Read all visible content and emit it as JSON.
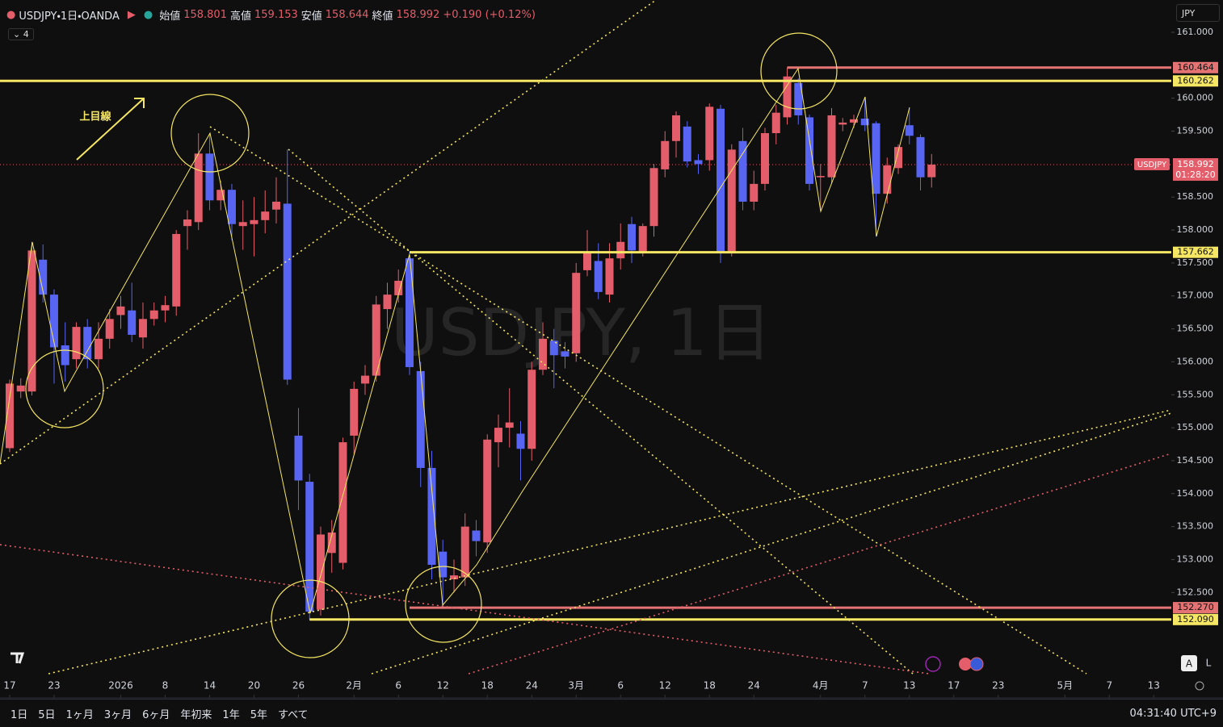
{
  "header": {
    "symbol": "USDJPY・1日・OANDA",
    "open_label": "始値",
    "open": "158.801",
    "high_label": "高値",
    "high": "159.153",
    "low_label": "安値",
    "low": "158.644",
    "close_label": "終値",
    "close": "158.992",
    "change": "+0.190 (+0.12%)",
    "indicators": "4",
    "currency": "JPY"
  },
  "chart_data": {
    "type": "candlestick",
    "watermark": "USDJPY, 1日",
    "annotation": "上目線",
    "colors": {
      "up": "#e35d6a",
      "down": "#5865f2"
    },
    "open": [
      154.69,
      155.55,
      155.55,
      157.55,
      157.02,
      156.25,
      156.04,
      156.53,
      156.04,
      156.35,
      156.71,
      156.78,
      156.37,
      156.65,
      156.78,
      156.84,
      158.06,
      158.12,
      159.16,
      158.45,
      158.61,
      158.06,
      158.09,
      158.15,
      158.31,
      158.4,
      154.88,
      154.18,
      152.24,
      153.1,
      152.95,
      154.88,
      155.67,
      155.79,
      156.8,
      157.01,
      157.57,
      155.86,
      154.39,
      153.12,
      152.7,
      152.73,
      153.44,
      153.26,
      154.78,
      155.0,
      154.91,
      154.68,
      155.88,
      156.32,
      156.16,
      156.13,
      157.39,
      157.53,
      157.02,
      157.57,
      158.09,
      157.67,
      158.06,
      158.92,
      159.35,
      159.57,
      159.06,
      159.06,
      159.84,
      157.67,
      159.35,
      158.43,
      158.7,
      159.47,
      159.71,
      160.23,
      159.71,
      158.8,
      158.8,
      159.6,
      159.63,
      159.69,
      159.62,
      158.55,
      158.94,
      159.59,
      159.41,
      158.801
    ],
    "high": [
      155.73,
      155.75,
      157.82,
      157.78,
      157.1,
      156.6,
      156.6,
      156.65,
      156.6,
      156.8,
      157.0,
      157.2,
      156.9,
      156.9,
      157.0,
      158.0,
      158.3,
      159.47,
      159.47,
      158.75,
      158.7,
      158.45,
      158.5,
      158.6,
      158.8,
      159.22,
      155.3,
      154.3,
      153.5,
      153.6,
      154.85,
      155.7,
      155.95,
      157.0,
      157.2,
      157.4,
      157.66,
      156.0,
      154.65,
      153.3,
      153.0,
      153.7,
      153.6,
      154.9,
      155.2,
      155.6,
      155.1,
      156.0,
      156.6,
      156.5,
      156.3,
      157.5,
      158.0,
      157.8,
      157.8,
      158.1,
      158.2,
      158.1,
      159.0,
      159.5,
      159.8,
      159.65,
      159.15,
      159.92,
      159.9,
      159.3,
      159.55,
      158.9,
      159.55,
      159.9,
      160.464,
      160.3,
      159.75,
      159.0,
      159.85,
      159.7,
      159.75,
      160.0,
      159.65,
      159.1,
      159.3,
      159.85,
      159.45,
      159.153
    ],
    "low": [
      154.63,
      155.45,
      155.49,
      156.9,
      155.67,
      155.7,
      155.9,
      155.9,
      155.9,
      156.2,
      156.5,
      156.3,
      156.2,
      156.55,
      156.6,
      156.7,
      157.7,
      158.0,
      158.3,
      158.3,
      157.85,
      157.7,
      157.6,
      157.95,
      158.1,
      155.65,
      153.75,
      152.09,
      152.15,
      152.8,
      152.85,
      154.6,
      155.5,
      155.7,
      156.5,
      156.9,
      155.8,
      154.1,
      152.7,
      152.27,
      152.5,
      152.6,
      153.05,
      153.1,
      154.4,
      154.7,
      154.2,
      154.5,
      155.8,
      155.6,
      155.9,
      156.0,
      157.3,
      156.95,
      156.9,
      157.4,
      157.5,
      157.6,
      157.9,
      158.8,
      159.1,
      158.95,
      158.85,
      158.9,
      157.5,
      157.6,
      158.3,
      158.3,
      158.6,
      159.3,
      159.6,
      159.6,
      158.6,
      158.3,
      158.7,
      159.5,
      159.55,
      159.5,
      157.9,
      158.4,
      158.85,
      159.3,
      158.6,
      158.644
    ],
    "close": [
      155.67,
      155.64,
      157.69,
      157.02,
      156.22,
      155.95,
      156.53,
      156.04,
      156.35,
      156.65,
      156.84,
      156.41,
      156.65,
      156.78,
      156.86,
      157.94,
      158.16,
      159.16,
      158.45,
      158.61,
      158.09,
      158.12,
      158.15,
      158.28,
      158.43,
      155.73,
      154.2,
      152.21,
      153.38,
      153.41,
      154.78,
      155.59,
      155.79,
      156.87,
      157.02,
      157.23,
      155.92,
      154.39,
      152.92,
      152.73,
      152.76,
      153.5,
      153.28,
      154.82,
      155.0,
      155.08,
      154.68,
      155.88,
      156.35,
      156.1,
      156.08,
      157.35,
      157.67,
      157.06,
      157.57,
      157.82,
      157.69,
      158.06,
      158.94,
      159.35,
      159.74,
      159.04,
      159.0,
      159.87,
      157.67,
      159.22,
      158.43,
      158.7,
      159.47,
      159.78,
      160.33,
      159.74,
      158.7,
      158.82,
      159.74,
      159.63,
      159.68,
      159.59,
      158.55,
      158.98,
      159.26,
      159.43,
      158.8,
      158.992
    ],
    "xlim": [
      -0.87,
      104.58
    ],
    "xticks": [
      {
        "value": 0,
        "label": "17"
      },
      {
        "value": 4,
        "label": "23"
      },
      {
        "value": 10,
        "label": "2026"
      },
      {
        "value": 14,
        "label": "8"
      },
      {
        "value": 18,
        "label": "14"
      },
      {
        "value": 22,
        "label": "20"
      },
      {
        "value": 26,
        "label": "26"
      },
      {
        "value": 31,
        "label": "2月"
      },
      {
        "value": 35,
        "label": "6"
      },
      {
        "value": 39,
        "label": "12"
      },
      {
        "value": 43,
        "label": "18"
      },
      {
        "value": 47,
        "label": "24"
      },
      {
        "value": 51,
        "label": "3月"
      },
      {
        "value": 55,
        "label": "6"
      },
      {
        "value": 59,
        "label": "12"
      },
      {
        "value": 63,
        "label": "18"
      },
      {
        "value": 67,
        "label": "24"
      },
      {
        "value": 73,
        "label": "4月"
      },
      {
        "value": 77,
        "label": "7"
      },
      {
        "value": 81,
        "label": "13"
      },
      {
        "value": 85,
        "label": "17"
      },
      {
        "value": 89,
        "label": "23"
      },
      {
        "value": 95,
        "label": "5月"
      },
      {
        "value": 99,
        "label": "7"
      },
      {
        "value": 103,
        "label": "13"
      }
    ],
    "ylim": [
      150.9,
      161.49
    ],
    "yticks": [
      {
        "value": 161,
        "label": "161.000"
      },
      {
        "value": 160,
        "label": "160.000"
      },
      {
        "value": 159.5,
        "label": "159.500"
      },
      {
        "value": 158.5,
        "label": "158.500"
      },
      {
        "value": 158,
        "label": "158.000"
      },
      {
        "value": 157.5,
        "label": "157.500"
      },
      {
        "value": 157,
        "label": "157.000"
      },
      {
        "value": 156.5,
        "label": "156.500"
      },
      {
        "value": 156,
        "label": "156.000"
      },
      {
        "value": 155.5,
        "label": "155.500"
      },
      {
        "value": 155,
        "label": "155.000"
      },
      {
        "value": 154.5,
        "label": "154.500"
      },
      {
        "value": 154,
        "label": "154.000"
      },
      {
        "value": 153.5,
        "label": "153.500"
      },
      {
        "value": 153,
        "label": "153.000"
      },
      {
        "value": 152.5,
        "label": "152.500"
      }
    ],
    "hlines": [
      {
        "value": 160.464,
        "label": "160.464",
        "color": "#e57373",
        "from": 70
      },
      {
        "value": 160.262,
        "label": "160.262",
        "color": "#f5e663",
        "from": -0.87
      },
      {
        "value": 157.662,
        "label": "157.662",
        "color": "#f5e663",
        "from": 36
      },
      {
        "value": 152.27,
        "label": "152.270",
        "color": "#e57373",
        "from": 36
      },
      {
        "value": 152.09,
        "label": "152.090",
        "color": "#f5e663",
        "from": 27
      }
    ],
    "last": {
      "symbol": "USDJPY",
      "value": 158.992,
      "countdown": "01:28:20",
      "color": "#e35d6a"
    }
  },
  "toolbar": {
    "ranges": [
      "1日",
      "5日",
      "1ヶ月",
      "3ヶ月",
      "6ヶ月",
      "年初来",
      "1年",
      "5年",
      "すべて"
    ],
    "clock": "04:31:40 UTC+9",
    "scale_auto": "A",
    "scale_log": "L"
  }
}
